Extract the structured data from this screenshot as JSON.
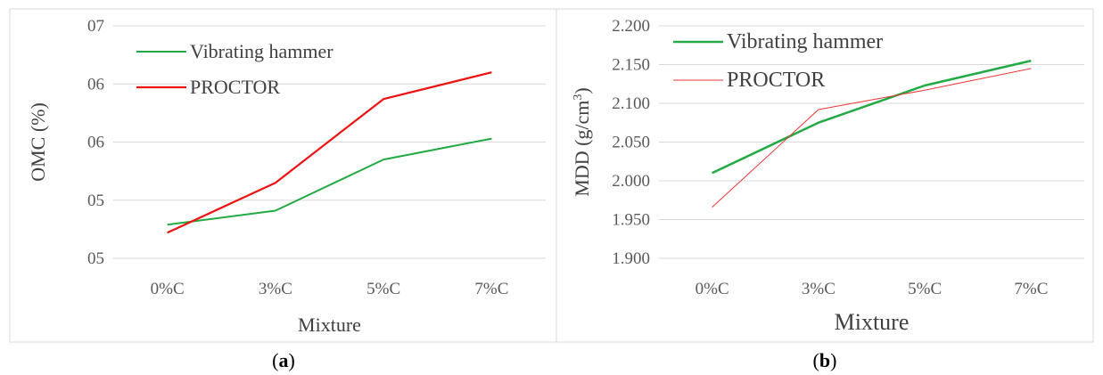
{
  "captions": [
    {
      "open": "(",
      "letter": "a",
      "close": ")"
    },
    {
      "open": "(",
      "letter": "b",
      "close": ")"
    }
  ],
  "chart_data": [
    {
      "type": "line",
      "categories": [
        "0%C",
        "3%C",
        "5%C",
        "7%C"
      ],
      "xlabel": "Mixture",
      "ylabel": "OMC (%)",
      "y_tick_labels": [
        "05",
        "05",
        "06",
        "06",
        "07"
      ],
      "ylim": [
        5.0,
        7.0
      ],
      "y_ticks": [
        5.0,
        5.5,
        6.0,
        6.5,
        7.0
      ],
      "grid": true,
      "legend_position": "top-left",
      "series": [
        {
          "name": "Vibrating hammer",
          "color": "#22aa44",
          "values": [
            5.29,
            5.41,
            5.85,
            6.03
          ]
        },
        {
          "name": "PROCTOR",
          "color": "#ee1111",
          "values": [
            5.22,
            5.65,
            6.37,
            6.6
          ]
        }
      ]
    },
    {
      "type": "line",
      "categories": [
        "0%C",
        "3%C",
        "5%C",
        "7%C"
      ],
      "xlabel": "Mixture",
      "ylabel": "MDD (g/cm",
      "ylabel_sup": "3",
      "ylabel_end": ")",
      "y_tick_labels": [
        "1.900",
        "1.950",
        "2.000",
        "2.050",
        "2.100",
        "2.150",
        "2.200"
      ],
      "ylim": [
        1.9,
        2.2
      ],
      "y_ticks": [
        1.9,
        1.95,
        2.0,
        2.05,
        2.1,
        2.15,
        2.2
      ],
      "grid": true,
      "legend_position": "top-left",
      "series": [
        {
          "name": "Vibrating hammer",
          "color": "#22aa44",
          "values": [
            2.01,
            2.075,
            2.123,
            2.155
          ]
        },
        {
          "name": "PROCTOR",
          "color": "#ee3333",
          "values": [
            1.966,
            2.092,
            2.117,
            2.145
          ]
        }
      ]
    }
  ]
}
